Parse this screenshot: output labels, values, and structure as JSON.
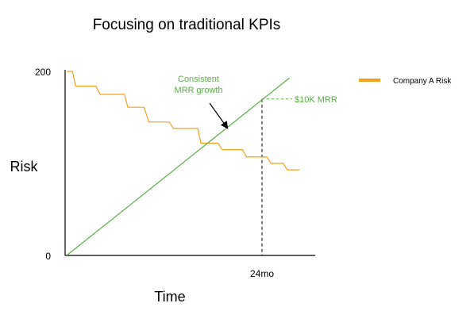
{
  "chart_data": {
    "type": "line",
    "title": "Focusing on traditional KPIs",
    "xlabel": "Time",
    "ylabel": "Risk",
    "xlim": [
      0,
      30.5
    ],
    "ylim": [
      0,
      200
    ],
    "y_ticks": [
      {
        "value": 0,
        "label": "0"
      },
      {
        "value": 200,
        "label": "200"
      }
    ],
    "x_ticks": [
      {
        "value": 24,
        "label": "24mo"
      }
    ],
    "grid": false,
    "legend_position": "top-right",
    "series": [
      {
        "name": "Company A Risk",
        "style": "step",
        "color": "#f4a11d",
        "points": [
          [
            0.0,
            200
          ],
          [
            0.7,
            200
          ],
          [
            1.1,
            184
          ],
          [
            3.6,
            184
          ],
          [
            4.1,
            175
          ],
          [
            7.1,
            175
          ],
          [
            7.5,
            161
          ],
          [
            9.5,
            161
          ],
          [
            10.1,
            145
          ],
          [
            12.6,
            145
          ],
          [
            13.1,
            138
          ],
          [
            16.1,
            138
          ],
          [
            16.5,
            122
          ],
          [
            18.6,
            122
          ],
          [
            19.1,
            115
          ],
          [
            21.6,
            115
          ],
          [
            22.1,
            107
          ],
          [
            24.6,
            107
          ],
          [
            25.1,
            100
          ],
          [
            26.6,
            100
          ],
          [
            27.1,
            93
          ],
          [
            28.6,
            93
          ]
        ]
      },
      {
        "name": "MRR growth",
        "style": "line",
        "color": "#5cad49",
        "points": [
          [
            0,
            0
          ],
          [
            27.4,
            193
          ]
        ]
      }
    ],
    "annotations": [
      {
        "text_lines": [
          "Consistent",
          "MRR growth"
        ],
        "color": "#5cad49",
        "arrow_to": [
          19.7,
          139
        ]
      },
      {
        "text": "$10K MRR",
        "color": "#5cad49",
        "at": [
          24,
          170
        ]
      }
    ],
    "reference_lines": [
      {
        "orientation": "vertical",
        "x": 24,
        "y_to": 170,
        "color": "#000000",
        "dashed": true
      },
      {
        "orientation": "horizontal",
        "y": 170,
        "x_from": 24,
        "x_to": 27.7,
        "color": "#5cad49",
        "dashed": true
      }
    ],
    "legend": [
      {
        "label": "Company A Risk",
        "color": "#f4a11d"
      }
    ]
  }
}
